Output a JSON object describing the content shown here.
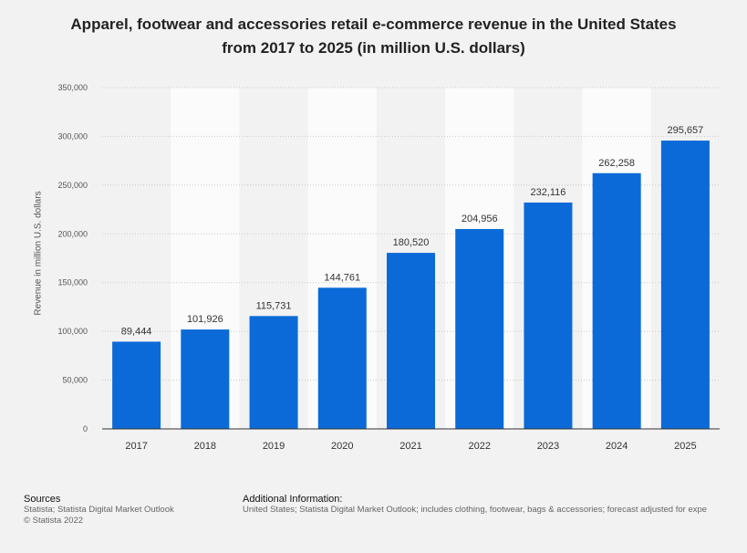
{
  "chart_data": {
    "type": "bar",
    "title_line1": "Apparel, footwear and accessories retail e-commerce revenue in the United States",
    "title_line2": "from 2017 to 2025 (in million U.S. dollars)",
    "ylabel": "Revenue in million U.S. dollars",
    "xlabel": "",
    "categories": [
      "2017",
      "2018",
      "2019",
      "2020",
      "2021",
      "2022",
      "2023",
      "2024",
      "2025"
    ],
    "values": [
      89444,
      101926,
      115731,
      144761,
      180520,
      204956,
      232116,
      262258,
      295657
    ],
    "value_labels": [
      "89,444",
      "101,926",
      "115,731",
      "144,761",
      "180,520",
      "204,956",
      "232,116",
      "262,258",
      "295,657"
    ],
    "ylim": [
      0,
      350000
    ],
    "yticks": [
      0,
      50000,
      100000,
      150000,
      200000,
      250000,
      300000,
      350000
    ],
    "ytick_labels": [
      "0",
      "50,000",
      "100,000",
      "150,000",
      "200,000",
      "250,000",
      "300,000",
      "350,000"
    ],
    "bar_color": "#0b6ad8",
    "grid": true
  },
  "footer": {
    "sources_heading": "Sources",
    "sources_line1": "Statista; Statista Digital Market Outlook",
    "sources_line2": "© Statista 2022",
    "info_heading": "Additional Information:",
    "info_text": "United States; Statista Digital Market Outlook; includes clothing, footwear, bags & accessories; forecast adjusted for expe"
  }
}
